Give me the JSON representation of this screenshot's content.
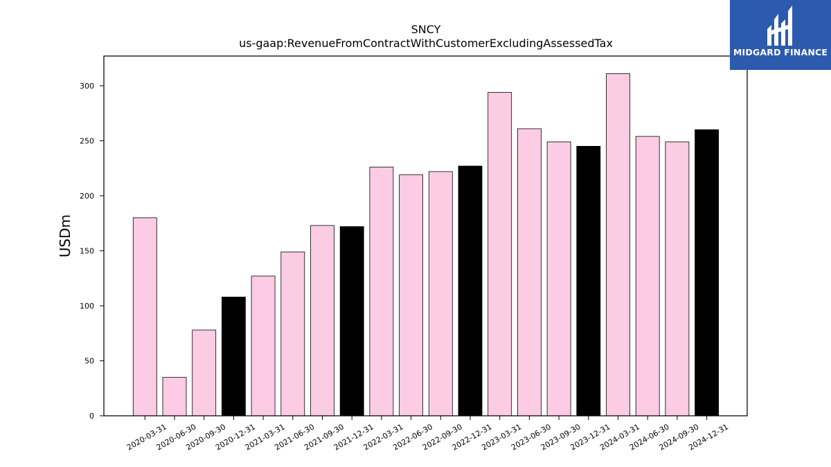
{
  "chart_data": {
    "type": "bar",
    "title": "SNCY",
    "subtitle": "us-gaap:RevenueFromContractWithCustomerExcludingAssessedTax",
    "xlabel": "",
    "ylabel": "USDm",
    "ylim": [
      0,
      327
    ],
    "yticks": [
      0,
      50,
      100,
      150,
      200,
      250,
      300
    ],
    "grid": false,
    "categories": [
      "2020-03-31",
      "2020-06-30",
      "2020-09-30",
      "2020-12-31",
      "2021-03-31",
      "2021-06-30",
      "2021-09-30",
      "2021-12-31",
      "2022-03-31",
      "2022-06-30",
      "2022-09-30",
      "2022-12-31",
      "2023-03-31",
      "2023-06-30",
      "2023-09-30",
      "2023-12-31",
      "2024-03-31",
      "2024-06-30",
      "2024-09-30",
      "2024-12-31"
    ],
    "values": [
      180,
      35,
      78,
      108,
      127,
      149,
      173,
      172,
      226,
      219,
      222,
      227,
      294,
      261,
      249,
      245,
      311,
      254,
      249,
      260
    ],
    "colors": {
      "quarter_bar": "#fccbe4",
      "year_end_bar": "#000000",
      "bar_edge": "#000000"
    }
  },
  "logo": {
    "text": "MIDGARD FINANCE",
    "icon": "midgard-logo-icon",
    "background": "#2b5aae"
  }
}
